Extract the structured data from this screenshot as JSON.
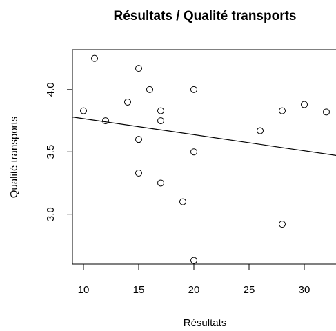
{
  "chart_data": {
    "type": "scatter",
    "title": "Résultats / Qualité transports",
    "xlabel": "Résultats",
    "ylabel": "Qualité transports",
    "xlim": [
      9,
      33
    ],
    "ylim": [
      2.6,
      4.32
    ],
    "xticks": [
      "10",
      "15",
      "20",
      "25",
      "30"
    ],
    "yticks": [
      "3.0",
      "3.5",
      "4.0"
    ],
    "grid": false,
    "points": [
      {
        "x": 10,
        "y": 3.83
      },
      {
        "x": 11,
        "y": 4.25
      },
      {
        "x": 12,
        "y": 3.75
      },
      {
        "x": 14,
        "y": 3.9
      },
      {
        "x": 15,
        "y": 4.17
      },
      {
        "x": 15,
        "y": 3.6
      },
      {
        "x": 15,
        "y": 3.33
      },
      {
        "x": 16,
        "y": 4.0
      },
      {
        "x": 17,
        "y": 3.83
      },
      {
        "x": 17,
        "y": 3.75
      },
      {
        "x": 17,
        "y": 3.25
      },
      {
        "x": 19,
        "y": 3.1
      },
      {
        "x": 20,
        "y": 4.0
      },
      {
        "x": 20,
        "y": 3.5
      },
      {
        "x": 20,
        "y": 2.63
      },
      {
        "x": 26,
        "y": 3.67
      },
      {
        "x": 28,
        "y": 3.83
      },
      {
        "x": 28,
        "y": 2.92
      },
      {
        "x": 30,
        "y": 3.88
      },
      {
        "x": 32,
        "y": 3.82
      }
    ],
    "trendline": {
      "x": [
        9,
        33
      ],
      "y": [
        3.78,
        3.47
      ]
    }
  }
}
